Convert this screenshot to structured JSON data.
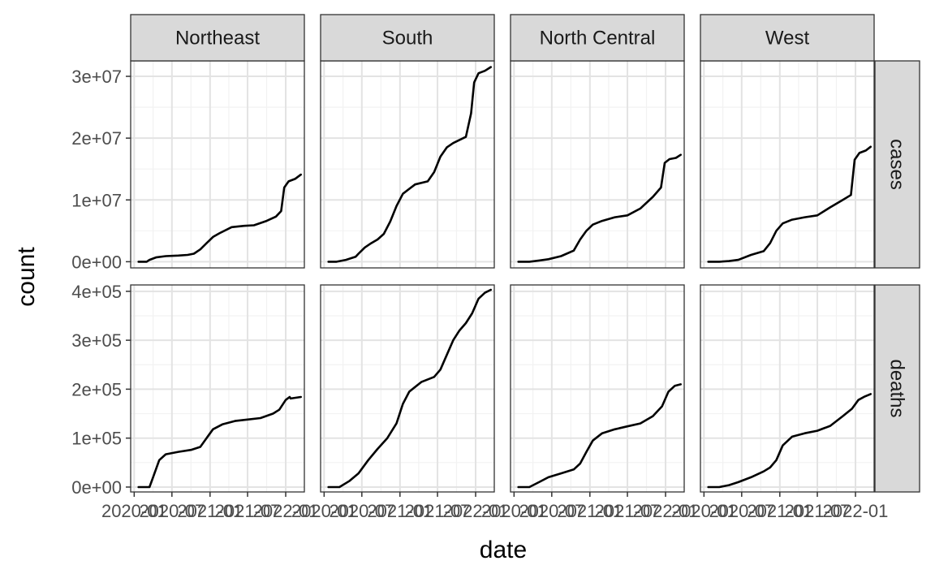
{
  "chart_data": {
    "type": "line",
    "facet_columns": [
      "Northeast",
      "South",
      "North Central",
      "West"
    ],
    "facet_rows": [
      "cases",
      "deaths"
    ],
    "xlabel": "date",
    "ylabel": "count",
    "x_ticks": [
      "2020-01",
      "2020-07",
      "2021-01",
      "2021-07",
      "2022-01"
    ],
    "x_range": [
      "2019-12-15",
      "2022-04-01"
    ],
    "grid": true,
    "theme": "bw",
    "line_color": "#000000",
    "rows": {
      "cases": {
        "y_ticks": [
          "0e+00",
          "1e+07",
          "2e+07",
          "3e+07"
        ],
        "y_tick_values": [
          0,
          10000000,
          20000000,
          30000000
        ],
        "ylim": [
          -1000000,
          32500000
        ]
      },
      "deaths": {
        "y_ticks": [
          "0e+00",
          "1e+05",
          "2e+05",
          "3e+05",
          "4e+05"
        ],
        "y_tick_values": [
          0,
          100000,
          200000,
          300000,
          400000
        ],
        "ylim": [
          -10000,
          413000
        ]
      }
    },
    "series": [
      {
        "region": "Northeast",
        "metric": "cases",
        "x": [
          "2020-01-22",
          "2020-03-01",
          "2020-03-15",
          "2020-04-15",
          "2020-06-01",
          "2020-08-01",
          "2020-09-15",
          "2020-10-15",
          "2020-11-15",
          "2020-12-15",
          "2021-01-15",
          "2021-02-15",
          "2021-04-15",
          "2021-06-15",
          "2021-08-01",
          "2021-10-01",
          "2021-11-15",
          "2021-12-10",
          "2021-12-25",
          "2022-01-15",
          "2022-02-15",
          "2022-03-15"
        ],
        "y": [
          0,
          0,
          300000,
          700000,
          900000,
          1000000,
          1100000,
          1300000,
          2000000,
          3000000,
          4000000,
          4600000,
          5600000,
          5800000,
          5900000,
          6600000,
          7300000,
          8200000,
          12000000,
          13000000,
          13400000,
          14100000
        ]
      },
      {
        "region": "South",
        "metric": "cases",
        "x": [
          "2020-01-22",
          "2020-03-01",
          "2020-04-15",
          "2020-06-01",
          "2020-06-15",
          "2020-07-15",
          "2020-08-15",
          "2020-09-15",
          "2020-10-15",
          "2020-11-15",
          "2020-12-15",
          "2021-01-15",
          "2021-03-15",
          "2021-05-15",
          "2021-06-15",
          "2021-07-15",
          "2021-08-15",
          "2021-09-15",
          "2021-11-15",
          "2021-12-10",
          "2021-12-25",
          "2022-01-15",
          "2022-02-15",
          "2022-03-15"
        ],
        "y": [
          0,
          0,
          300000,
          800000,
          1300000,
          2300000,
          3000000,
          3600000,
          4500000,
          6500000,
          9000000,
          11000000,
          12500000,
          13000000,
          14500000,
          17000000,
          18500000,
          19200000,
          20200000,
          24000000,
          29000000,
          30500000,
          30900000,
          31500000
        ]
      },
      {
        "region": "North Central",
        "metric": "cases",
        "x": [
          "2020-01-22",
          "2020-03-15",
          "2020-05-01",
          "2020-06-15",
          "2020-08-15",
          "2020-10-15",
          "2020-11-15",
          "2020-12-15",
          "2021-01-15",
          "2021-03-01",
          "2021-05-01",
          "2021-07-01",
          "2021-09-01",
          "2021-11-01",
          "2021-12-10",
          "2021-12-28",
          "2022-01-20",
          "2022-02-20",
          "2022-03-15"
        ],
        "y": [
          0,
          0,
          200000,
          400000,
          900000,
          1800000,
          3600000,
          5000000,
          6000000,
          6600000,
          7200000,
          7500000,
          8600000,
          10500000,
          12000000,
          16000000,
          16600000,
          16800000,
          17300000
        ]
      },
      {
        "region": "West",
        "metric": "cases",
        "x": [
          "2020-01-22",
          "2020-03-15",
          "2020-05-01",
          "2020-06-15",
          "2020-08-15",
          "2020-10-15",
          "2020-11-15",
          "2020-12-15",
          "2021-01-15",
          "2021-03-01",
          "2021-05-01",
          "2021-07-01",
          "2021-09-01",
          "2021-11-01",
          "2021-12-10",
          "2021-12-28",
          "2022-01-20",
          "2022-02-20",
          "2022-03-15"
        ],
        "y": [
          0,
          0,
          100000,
          300000,
          1100000,
          1700000,
          3000000,
          5000000,
          6200000,
          6800000,
          7200000,
          7500000,
          8800000,
          10000000,
          10800000,
          16500000,
          17600000,
          18000000,
          18600000
        ]
      },
      {
        "region": "Northeast",
        "metric": "deaths",
        "x": [
          "2020-01-22",
          "2020-03-15",
          "2020-04-01",
          "2020-05-01",
          "2020-06-01",
          "2020-08-01",
          "2020-10-01",
          "2020-11-15",
          "2020-12-15",
          "2021-01-15",
          "2021-03-01",
          "2021-05-01",
          "2021-07-01",
          "2021-09-01",
          "2021-11-01",
          "2021-12-01",
          "2022-01-01",
          "2022-01-20",
          "2022-01-25",
          "2022-03-15"
        ],
        "y": [
          0,
          0,
          20000,
          55000,
          67000,
          72000,
          76000,
          82000,
          100000,
          118000,
          128000,
          135000,
          138000,
          141000,
          150000,
          158000,
          178000,
          184000,
          181000,
          184000
        ]
      },
      {
        "region": "South",
        "metric": "deaths",
        "x": [
          "2020-01-22",
          "2020-03-15",
          "2020-05-01",
          "2020-06-15",
          "2020-08-01",
          "2020-09-15",
          "2020-11-01",
          "2020-12-15",
          "2021-01-15",
          "2021-02-15",
          "2021-04-15",
          "2021-06-15",
          "2021-07-15",
          "2021-08-15",
          "2021-09-15",
          "2021-10-15",
          "2021-11-15",
          "2021-12-15",
          "2022-01-15",
          "2022-02-15",
          "2022-03-15"
        ],
        "y": [
          0,
          0,
          12000,
          28000,
          55000,
          78000,
          100000,
          130000,
          170000,
          195000,
          215000,
          225000,
          240000,
          270000,
          300000,
          320000,
          335000,
          355000,
          385000,
          397000,
          403000
        ]
      },
      {
        "region": "North Central",
        "metric": "deaths",
        "x": [
          "2020-01-22",
          "2020-03-15",
          "2020-05-01",
          "2020-06-15",
          "2020-08-15",
          "2020-10-15",
          "2020-11-15",
          "2020-12-15",
          "2021-01-15",
          "2021-03-01",
          "2021-05-01",
          "2021-07-01",
          "2021-09-01",
          "2021-11-01",
          "2021-12-15",
          "2022-01-15",
          "2022-02-15",
          "2022-03-15"
        ],
        "y": [
          0,
          0,
          10000,
          20000,
          28000,
          36000,
          48000,
          72000,
          95000,
          110000,
          118000,
          124000,
          130000,
          145000,
          165000,
          195000,
          207000,
          210000
        ]
      },
      {
        "region": "West",
        "metric": "deaths",
        "x": [
          "2020-01-22",
          "2020-03-15",
          "2020-05-01",
          "2020-06-15",
          "2020-08-15",
          "2020-10-15",
          "2020-11-15",
          "2020-12-15",
          "2021-01-15",
          "2021-03-01",
          "2021-05-01",
          "2021-07-01",
          "2021-09-01",
          "2021-11-01",
          "2021-12-15",
          "2022-01-15",
          "2022-02-15",
          "2022-03-15"
        ],
        "y": [
          0,
          0,
          4000,
          10000,
          20000,
          32000,
          40000,
          55000,
          85000,
          103000,
          110000,
          115000,
          125000,
          145000,
          160000,
          178000,
          185000,
          190000
        ]
      }
    ]
  }
}
